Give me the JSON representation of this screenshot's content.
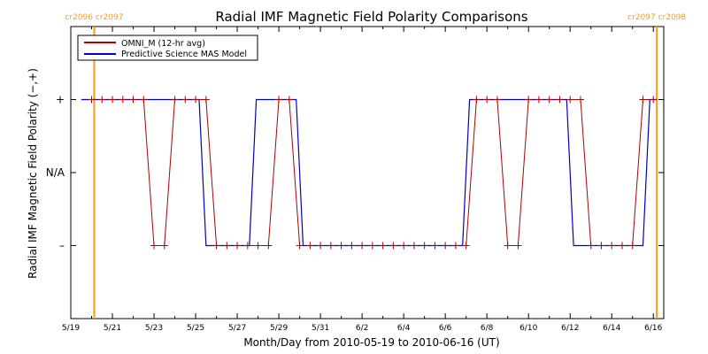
{
  "colors": {
    "omni": "#b00000",
    "model": "#0000cc",
    "boundary": "#ff9a1a",
    "axis": "#000000"
  },
  "chart_data": {
    "type": "line",
    "title": "Radial IMF Magnetic Field Polarity Comparisons",
    "xlabel": "Month/Day from 2010-05-19 to 2010-06-16 (UT)",
    "ylabel": "Radial IMF Magnetic Field Polarity (−,+)",
    "xlim": [
      "2010-05-19 00:00",
      "2010-06-16 12:00"
    ],
    "ylim": [
      -2,
      2
    ],
    "x_tick_labels": [
      "5/19",
      "5/21",
      "5/23",
      "5/25",
      "5/27",
      "5/29",
      "5/31",
      "6/2",
      "6/4",
      "6/6",
      "6/8",
      "6/10",
      "6/12",
      "6/14",
      "6/16"
    ],
    "x_tick_dates": [
      "2010-05-19",
      "2010-05-21",
      "2010-05-23",
      "2010-05-25",
      "2010-05-27",
      "2010-05-29",
      "2010-05-31",
      "2010-06-02",
      "2010-06-04",
      "2010-06-06",
      "2010-06-08",
      "2010-06-10",
      "2010-06-12",
      "2010-06-14",
      "2010-06-16"
    ],
    "y_ticks": [
      {
        "value": 1,
        "label": "+"
      },
      {
        "value": 0,
        "label": "N/A"
      },
      {
        "value": -1,
        "label": "–"
      }
    ],
    "legend_position": "top-left",
    "boundaries": [
      {
        "date": "2010-05-20 03:00",
        "label": "cr2096 cr2097"
      },
      {
        "date": "2010-06-16 04:00",
        "label": "cr2097 cr2098"
      }
    ],
    "series": [
      {
        "name": "OMNI_M (12-hr avg)",
        "color": "#b00000",
        "markers": true,
        "points": [
          [
            "2010-05-20 00:00",
            1
          ],
          [
            "2010-05-20 12:00",
            1
          ],
          [
            "2010-05-21 00:00",
            1
          ],
          [
            "2010-05-21 12:00",
            1
          ],
          [
            "2010-05-22 00:00",
            1
          ],
          [
            "2010-05-22 12:00",
            1
          ],
          [
            "2010-05-23 00:00",
            -1
          ],
          [
            "2010-05-23 12:00",
            -1
          ],
          [
            "2010-05-24 00:00",
            1
          ],
          [
            "2010-05-24 12:00",
            1
          ],
          [
            "2010-05-25 00:00",
            1
          ],
          [
            "2010-05-25 12:00",
            1
          ],
          [
            "2010-05-26 00:00",
            -1
          ],
          [
            "2010-05-26 12:00",
            -1
          ],
          [
            "2010-05-27 00:00",
            -1
          ],
          [
            "2010-05-27 12:00",
            -1
          ],
          [
            "2010-05-28 00:00",
            -1
          ],
          [
            "2010-05-28 12:00",
            -1
          ],
          [
            "2010-05-29 00:00",
            1
          ],
          [
            "2010-05-29 12:00",
            1
          ],
          [
            "2010-05-30 00:00",
            -1
          ],
          [
            "2010-05-30 12:00",
            -1
          ],
          [
            "2010-05-31 00:00",
            -1
          ],
          [
            "2010-05-31 12:00",
            -1
          ],
          [
            "2010-06-01 00:00",
            -1
          ],
          [
            "2010-06-01 12:00",
            -1
          ],
          [
            "2010-06-02 00:00",
            -1
          ],
          [
            "2010-06-02 12:00",
            -1
          ],
          [
            "2010-06-03 00:00",
            -1
          ],
          [
            "2010-06-03 12:00",
            -1
          ],
          [
            "2010-06-04 00:00",
            -1
          ],
          [
            "2010-06-04 12:00",
            -1
          ],
          [
            "2010-06-05 00:00",
            -1
          ],
          [
            "2010-06-05 12:00",
            -1
          ],
          [
            "2010-06-06 00:00",
            -1
          ],
          [
            "2010-06-06 12:00",
            -1
          ],
          [
            "2010-06-07 00:00",
            -1
          ],
          [
            "2010-06-07 12:00",
            1
          ],
          [
            "2010-06-08 00:00",
            1
          ],
          [
            "2010-06-08 12:00",
            1
          ],
          [
            "2010-06-09 00:00",
            -1
          ],
          [
            "2010-06-09 12:00",
            -1
          ],
          [
            "2010-06-10 00:00",
            1
          ],
          [
            "2010-06-10 12:00",
            1
          ],
          [
            "2010-06-11 00:00",
            1
          ],
          [
            "2010-06-11 12:00",
            1
          ],
          [
            "2010-06-12 00:00",
            1
          ],
          [
            "2010-06-12 12:00",
            1
          ],
          [
            "2010-06-13 00:00",
            -1
          ],
          [
            "2010-06-13 12:00",
            -1
          ],
          [
            "2010-06-14 00:00",
            -1
          ],
          [
            "2010-06-14 12:00",
            -1
          ],
          [
            "2010-06-15 00:00",
            -1
          ],
          [
            "2010-06-15 12:00",
            1
          ],
          [
            "2010-06-16 00:00",
            1
          ]
        ]
      },
      {
        "name": "Predictive Science MAS Model",
        "color": "#0000cc",
        "markers": false,
        "points": [
          [
            "2010-05-19 12:00",
            1
          ],
          [
            "2010-05-25 04:00",
            1
          ],
          [
            "2010-05-25 12:00",
            -1
          ],
          [
            "2010-05-27 14:00",
            -1
          ],
          [
            "2010-05-27 22:00",
            1
          ],
          [
            "2010-05-29 20:00",
            1
          ],
          [
            "2010-05-30 04:00",
            -1
          ],
          [
            "2010-06-06 20:00",
            -1
          ],
          [
            "2010-06-07 04:00",
            1
          ],
          [
            "2010-06-11 20:00",
            1
          ],
          [
            "2010-06-12 04:00",
            -1
          ],
          [
            "2010-06-15 12:00",
            -1
          ],
          [
            "2010-06-15 20:00",
            1
          ],
          [
            "2010-06-16 04:00",
            1
          ]
        ]
      }
    ]
  }
}
